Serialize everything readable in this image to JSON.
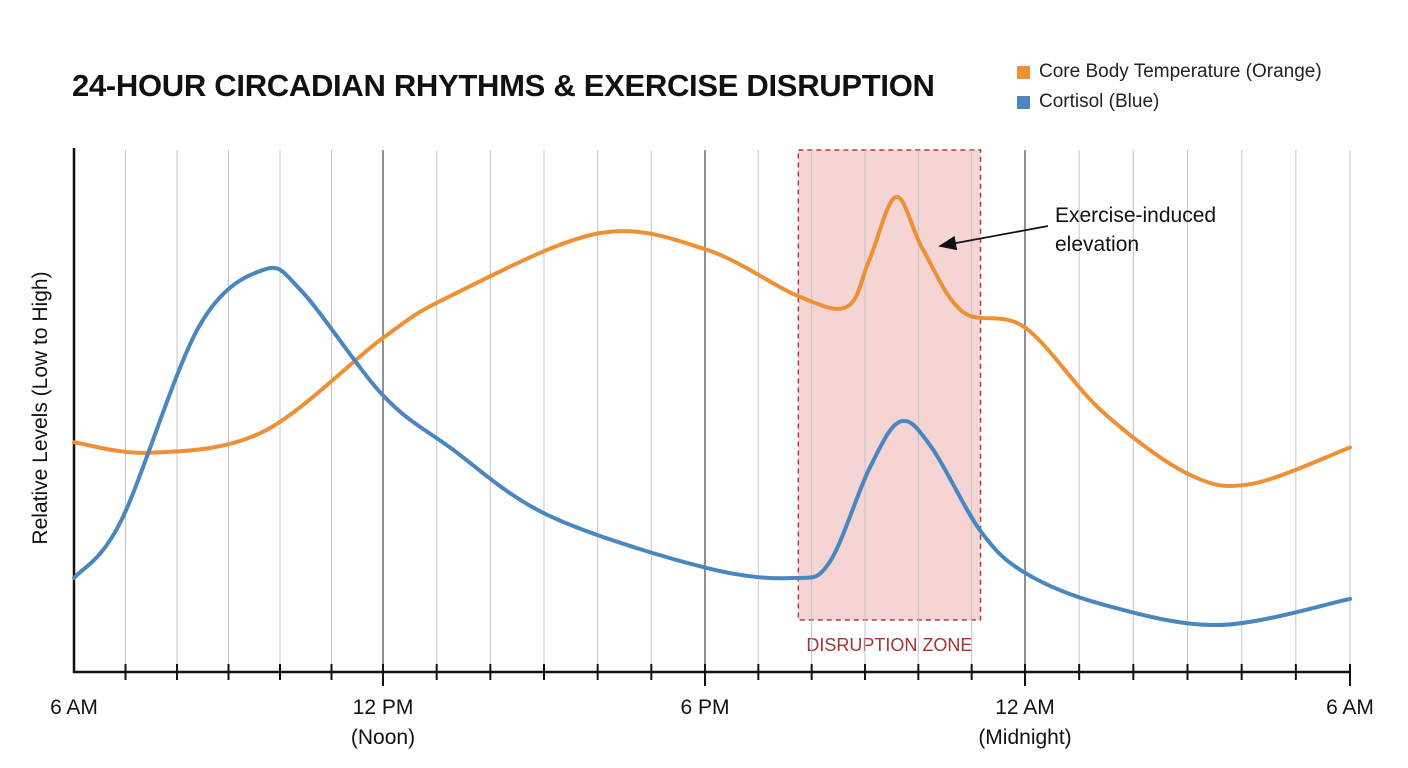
{
  "chart_data": {
    "type": "line",
    "title": "24-HOUR CIRCADIAN RHYTHMS & EXERCISE DISRUPTION",
    "ylabel": "Relative Levels (Low to High)",
    "xlabel": "",
    "ylim": [
      0,
      100
    ],
    "y_ticks_shown": false,
    "grid": "vertical lines hourly",
    "legend_placement": "top-right",
    "x_ticks": [
      {
        "time": "06:00",
        "label": "6 AM",
        "sub": ""
      },
      {
        "time": "12:00",
        "label": "12 PM",
        "sub": "(Noon)"
      },
      {
        "time": "18:00",
        "label": "6 PM",
        "sub": ""
      },
      {
        "time": "00:00",
        "label": "12 AM",
        "sub": "(Midnight)"
      },
      {
        "time": "06:00",
        "label": "6 AM",
        "sub": ""
      }
    ],
    "series": [
      {
        "name": "Core Body Temperature (Orange)",
        "color": "#ee9035",
        "x": [
          "06:00",
          "07:30",
          "09:40",
          "12:00",
          "13:15",
          "16:00",
          "18:00",
          "19:45",
          "20:40",
          "21:05",
          "21:35",
          "22:05",
          "22:50",
          "00:00",
          "01:25",
          "03:00",
          "04:10",
          "06:00"
        ],
        "y": [
          44,
          42,
          46,
          64,
          72,
          84,
          81,
          72,
          70,
          79,
          91,
          81,
          69,
          66,
          50,
          38,
          36,
          43
        ]
      },
      {
        "name": "Cortisol (Blue)",
        "color": "#4a86c0",
        "x": [
          "06:00",
          "06:55",
          "08:25",
          "09:40",
          "10:25",
          "12:00",
          "13:15",
          "15:05",
          "18:00",
          "19:40",
          "20:20",
          "21:05",
          "21:40",
          "22:15",
          "23:10",
          "00:00",
          "01:25",
          "03:35",
          "06:00"
        ],
        "y": [
          18,
          29,
          66,
          77,
          73,
          53,
          43,
          30,
          20,
          18,
          21,
          39,
          48,
          43,
          27,
          19,
          13,
          9,
          14
        ]
      }
    ],
    "annotations": [
      {
        "type": "region",
        "label": "DISRUPTION ZONE",
        "x_start": "19:45",
        "x_end": "23:10",
        "color": "#f2c9c9",
        "border": "#b53a3a"
      },
      {
        "type": "arrow",
        "label_lines": [
          "Exercise-induced",
          "elevation"
        ],
        "points_to": {
          "series": "Core Body Temperature (Orange)",
          "time": "21:35"
        }
      }
    ]
  }
}
